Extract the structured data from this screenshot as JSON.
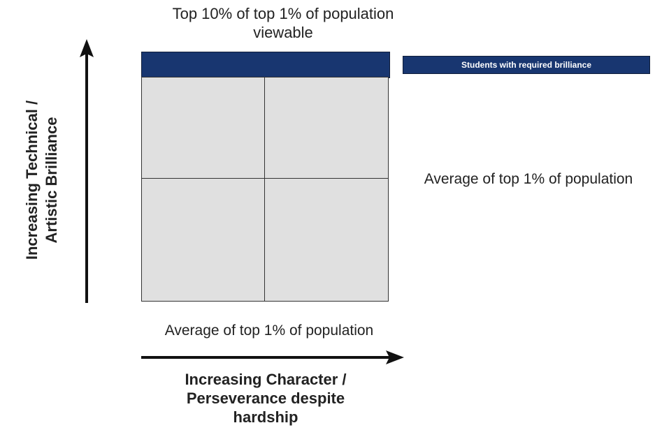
{
  "diagram": {
    "top_label": "Top 10% of top 1% of population viewable",
    "y_axis_label": "Increasing Technical / Artistic Brilliance",
    "x_axis_label": "Increasing Character / Perseverance despite hardship",
    "legend": {
      "label": "Students with required brilliance",
      "color": "#183670"
    },
    "right_label": "Average of top 1% of population",
    "bottom_label": "Average of top 1% of population",
    "grid_color": "#e0e0e0",
    "quadrants": [
      "top-left",
      "top-right",
      "bottom-left",
      "bottom-right"
    ]
  }
}
